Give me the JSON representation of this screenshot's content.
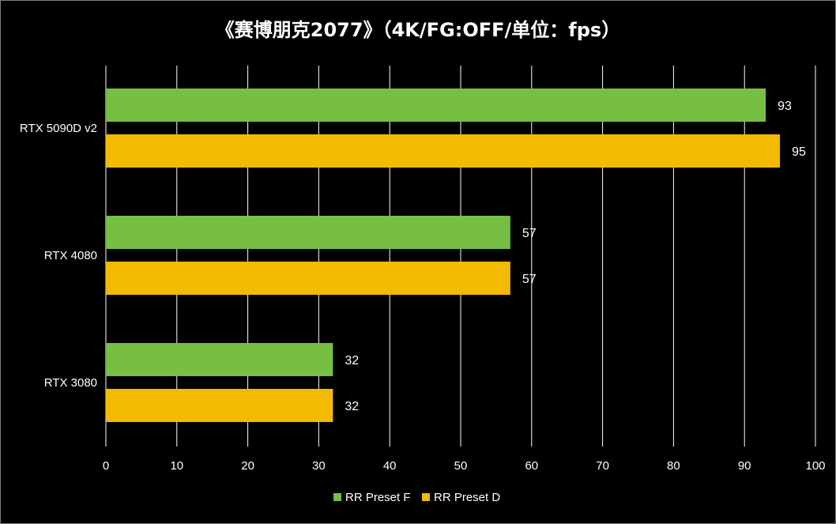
{
  "chart_data": {
    "type": "bar",
    "orientation": "horizontal",
    "title": "《赛博朋克2077》（4K/FG:OFF/单位：fps）",
    "categories": [
      "RTX 5090D v2",
      "RTX 4080",
      "RTX 3080"
    ],
    "series": [
      {
        "name": "RR Preset F",
        "values": [
          93,
          57,
          32
        ],
        "color": "#77bf43"
      },
      {
        "name": "RR Preset D",
        "values": [
          95,
          57,
          32
        ],
        "color": "#f2ba00"
      }
    ],
    "xlim": [
      0,
      100
    ],
    "ticks": [
      0,
      10,
      20,
      30,
      40,
      50,
      60,
      70,
      80,
      90,
      100
    ],
    "grid": true,
    "legend": "bottom",
    "xlabel": "",
    "ylabel": ""
  }
}
